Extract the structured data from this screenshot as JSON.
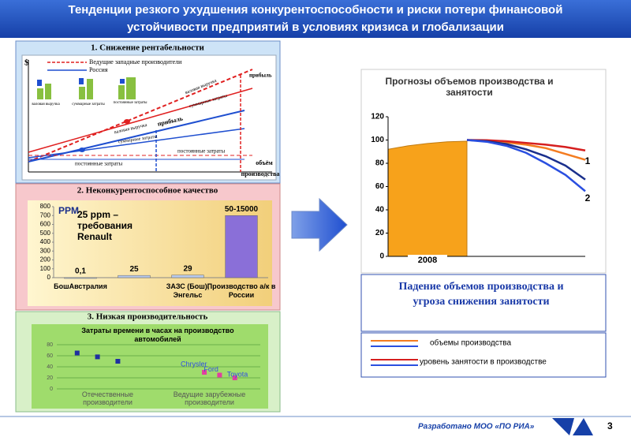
{
  "header": {
    "title_lines": [
      "Тенденции резкого ухудшения конкурентоспособности и риски потери финансовой",
      "устойчивости предприятий в условиях кризиса и глобализации"
    ]
  },
  "panel1": {
    "title": "1. Снижение рентабельности",
    "y_symbol": "$",
    "legend": [
      "Ведущие западные производители",
      "Россия"
    ],
    "mini_bars": [
      "валовая выручка",
      "суммарные затраты",
      "постоянные затраты"
    ],
    "labels": {
      "profit_top": "прибыль",
      "revenue_top": "валовая выручка",
      "costs_top": "суммарные затраты",
      "fixed_top": "постоянные затраты",
      "profit": "прибыль",
      "revenue": "валовая выручка",
      "costs": "суммарные затраты",
      "fixed": "постоянные затраты",
      "x_axis_1": "объём",
      "x_axis_2": "производства"
    }
  },
  "panel2": {
    "title": "2. Неконкурентоспособное качество"
  },
  "panel3": {
    "title": "3. Низкая производительность"
  },
  "chart_data": [
    {
      "type": "bar",
      "title": "PPM",
      "annotation": "25 ppm – требования Renault",
      "categories": [
        "БошАвстралия",
        null,
        "ЗАЗС (Бош), Энгельс",
        "Производство а/к в России"
      ],
      "values": [
        0.1,
        25,
        29,
        700
      ],
      "value_labels": [
        "0,1",
        "25",
        "29",
        "50-15000"
      ],
      "colors": [
        "#b7c9ec",
        "#b7c9ec",
        "#b7c9ec",
        "#8a6fd8"
      ],
      "ylim": [
        0,
        800
      ],
      "yticks": [
        0,
        100,
        200,
        300,
        400,
        500,
        600,
        700,
        800
      ]
    },
    {
      "type": "scatter",
      "title": "Затраты времени в часах на производство автомобилей",
      "categories": [
        "Отечественные производители",
        "Ведущие зарубежные производители"
      ],
      "xlim": [
        0,
        4
      ],
      "series": [
        {
          "color": "#1f2fa0",
          "x": [
            0.4,
            0.8,
            1.2
          ],
          "values": [
            65,
            58,
            50
          ]
        },
        {
          "color": "#e040a0",
          "x": [
            2.9,
            3.2,
            3.5
          ],
          "values": [
            30,
            25,
            20
          ],
          "point_labels": [
            "Chrysler",
            "Ford",
            "Toyota"
          ]
        }
      ],
      "ylim": [
        0,
        80
      ],
      "yticks": [
        0,
        20,
        40,
        60,
        80
      ],
      "grid": true
    },
    {
      "type": "line",
      "title": "Прогнозы объемов производства и занятости",
      "xlim": [
        0,
        10
      ],
      "xticks": [
        {
          "value": 2,
          "label": "2008"
        }
      ],
      "area": {
        "color": "#f7a21b",
        "x": [
          0,
          1,
          2,
          3,
          4
        ],
        "values": [
          92,
          95,
          97,
          98.5,
          99
        ]
      },
      "series": [
        {
          "color": "#f47c20",
          "x": [
            4,
            5,
            6,
            7,
            8,
            9,
            10
          ],
          "values": [
            100,
            99.5,
            98,
            96,
            93,
            88,
            83
          ]
        },
        {
          "color": "#d61f1f",
          "x": [
            4,
            5,
            6,
            7,
            8,
            9,
            10
          ],
          "values": [
            100,
            99.8,
            99,
            97.5,
            96,
            94,
            91
          ]
        },
        {
          "color": "#1a2f8c",
          "x": [
            4,
            5,
            6,
            7,
            8,
            9,
            10
          ],
          "values": [
            100,
            99,
            96.5,
            92,
            86,
            78,
            66
          ]
        },
        {
          "color": "#2a4fe0",
          "x": [
            4,
            5,
            6,
            7,
            8,
            9,
            10
          ],
          "values": [
            100,
            98.5,
            95,
            89,
            80,
            70,
            56
          ]
        }
      ],
      "annotations": [
        "1",
        "2"
      ],
      "ylim": [
        0,
        120
      ],
      "yticks": [
        0,
        20,
        40,
        60,
        80,
        100,
        120
      ]
    }
  ],
  "note": "Падение объемов производства и угроза снижения занятости",
  "legend": [
    {
      "label": "объемы производства",
      "colors": [
        "#f47c20",
        "#2a4fe0"
      ]
    },
    {
      "label": "уровень занятости  в производстве",
      "colors": [
        "#d61f1f",
        "#2a4fe0"
      ]
    }
  ],
  "footer": {
    "credit": "Разработано МОО «ПО РИА»",
    "page": 3
  }
}
